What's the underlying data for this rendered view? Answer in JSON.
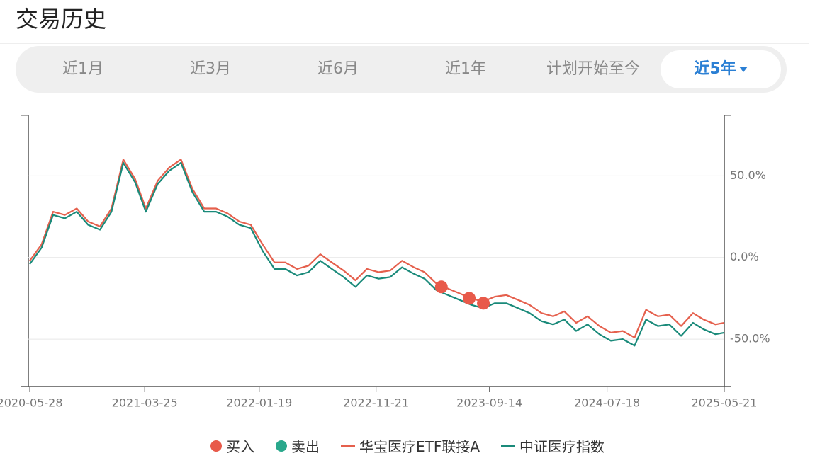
{
  "header": {
    "title": "交易历史"
  },
  "tabs": {
    "items": [
      "近1月",
      "近3月",
      "近6月",
      "近1年",
      "计划开始至今",
      "近5年"
    ],
    "selected": 5
  },
  "chart_data": {
    "type": "line",
    "x": [
      "2020-05-28",
      "2020-06-28",
      "2020-07-28",
      "2020-08-28",
      "2020-09-28",
      "2020-10-28",
      "2020-11-28",
      "2020-12-28",
      "2021-01-28",
      "2021-02-28",
      "2021-03-28",
      "2021-04-28",
      "2021-05-28",
      "2021-06-28",
      "2021-07-28",
      "2021-08-28",
      "2021-09-28",
      "2021-10-28",
      "2021-11-28",
      "2021-12-28",
      "2022-01-28",
      "2022-02-28",
      "2022-03-28",
      "2022-04-28",
      "2022-05-28",
      "2022-06-28",
      "2022-07-28",
      "2022-08-28",
      "2022-09-28",
      "2022-10-28",
      "2022-11-28",
      "2022-12-28",
      "2023-01-28",
      "2023-02-28",
      "2023-03-28",
      "2023-04-28",
      "2023-05-28",
      "2023-06-28",
      "2023-07-28",
      "2023-08-28",
      "2023-09-28",
      "2023-10-28",
      "2023-11-28",
      "2023-12-28",
      "2024-01-28",
      "2024-02-28",
      "2024-03-28",
      "2024-04-28",
      "2024-05-28",
      "2024-06-28",
      "2024-07-28",
      "2024-08-28",
      "2024-09-28",
      "2024-10-28",
      "2024-11-28",
      "2024-12-28",
      "2025-01-28",
      "2025-02-28",
      "2025-03-28",
      "2025-04-28",
      "2025-05-21"
    ],
    "xlim": [
      "2020-05-28",
      "2025-05-21"
    ],
    "xticks": [
      "2020-05-28",
      "2021-03-25",
      "2022-01-19",
      "2022-11-21",
      "2023-09-14",
      "2024-07-18",
      "2025-05-21"
    ],
    "ylim": [
      -79,
      87
    ],
    "yticks": [
      {
        "value": 50,
        "label": "50.0%"
      },
      {
        "value": 0,
        "label": "0.0%"
      },
      {
        "value": -50,
        "label": "-50.0%"
      }
    ],
    "grid": true,
    "y_axis_side": "right",
    "series": [
      {
        "name": "买入",
        "type": "scatter",
        "color": "#e85a4a",
        "x": [
          "2023-05-11",
          "2023-07-23",
          "2023-08-29"
        ],
        "values": [
          -18,
          -25,
          -28
        ]
      },
      {
        "name": "卖出",
        "type": "scatter",
        "color": "#2aa88c",
        "x": [],
        "values": []
      },
      {
        "name": "华宝医疗ETF联接A",
        "type": "line",
        "color": "#e5604d",
        "values": [
          -2,
          8,
          28,
          26,
          30,
          22,
          19,
          30,
          60,
          48,
          30,
          47,
          55,
          60,
          42,
          30,
          30,
          27,
          22,
          20,
          8,
          -3,
          -3,
          -7,
          -5,
          2,
          -3,
          -8,
          -14,
          -7,
          -9,
          -8,
          -2,
          -6,
          -9,
          -16,
          -19,
          -22,
          -25,
          -27,
          -24,
          -23,
          -26,
          -29,
          -34,
          -36,
          -33,
          -40,
          -36,
          -42,
          -46,
          -45,
          -49,
          -32,
          -36,
          -35,
          -42,
          -34,
          -38,
          -41,
          -40
        ]
      },
      {
        "name": "中证医疗指数",
        "type": "line",
        "color": "#1a8a7a",
        "values": [
          -4,
          6,
          26,
          24,
          28,
          20,
          17,
          28,
          58,
          46,
          28,
          45,
          53,
          58,
          40,
          28,
          28,
          25,
          20,
          18,
          4,
          -7,
          -7,
          -11,
          -9,
          -2,
          -7,
          -12,
          -18,
          -11,
          -13,
          -12,
          -6,
          -10,
          -13,
          -20,
          -23,
          -26,
          -29,
          -31,
          -28,
          -28,
          -31,
          -34,
          -39,
          -41,
          -38,
          -45,
          -41,
          -47,
          -51,
          -50,
          -54,
          -38,
          -42,
          -41,
          -48,
          -40,
          -44,
          -47,
          -46
        ]
      }
    ]
  }
}
